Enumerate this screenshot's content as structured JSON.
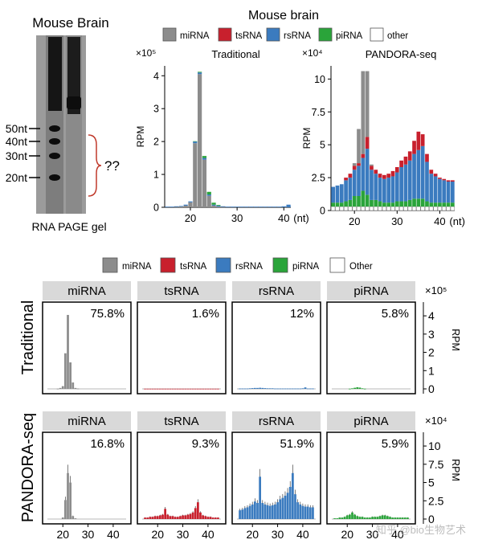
{
  "gel": {
    "title": "Mouse Brain",
    "markers": [
      "50nt",
      "40nt",
      "30nt",
      "20nt"
    ],
    "question": "??",
    "caption": "RNA PAGE gel"
  },
  "legend_top": {
    "title": "Mouse brain",
    "items": [
      "miRNA",
      "tsRNA",
      "rsRNA",
      "piRNA",
      "other"
    ]
  },
  "legend_bottom": {
    "items": [
      "miRNA",
      "tsRNA",
      "rsRNA",
      "piRNA",
      "Other"
    ]
  },
  "colors": {
    "miRNA": "#8c8c8c",
    "tsRNA": "#c8202d",
    "rsRNA": "#3b7bbf",
    "piRNA": "#2aa43a",
    "other": "#ffffff"
  },
  "watermark": "知乎 @bio生物艺术",
  "chart_data": [
    {
      "type": "bar",
      "title": "Traditional",
      "ylabel": "RPM",
      "xlabel": "(nt)",
      "y_exponent": "×10⁵",
      "xticks": [
        20,
        30,
        40
      ],
      "yticks": [
        0,
        1,
        2,
        3,
        4
      ],
      "x": [
        15,
        16,
        17,
        18,
        19,
        20,
        21,
        22,
        23,
        24,
        25,
        26,
        27,
        28,
        29,
        30,
        31,
        32,
        33,
        34,
        35,
        36,
        37,
        38,
        39,
        40,
        41
      ],
      "series": [
        {
          "name": "miRNA",
          "values": [
            0,
            0,
            0.01,
            0.02,
            0.05,
            0.15,
            1.95,
            4.05,
            1.45,
            0.35,
            0.05,
            0.02,
            0.01,
            0,
            0,
            0,
            0,
            0,
            0,
            0,
            0,
            0,
            0,
            0,
            0,
            0,
            0
          ]
        },
        {
          "name": "rsRNA",
          "values": [
            0.02,
            0.02,
            0.02,
            0.02,
            0.03,
            0.03,
            0.05,
            0.05,
            0.05,
            0.04,
            0.03,
            0.03,
            0.02,
            0.02,
            0.02,
            0.02,
            0.02,
            0.02,
            0.02,
            0.02,
            0.02,
            0.02,
            0.02,
            0.02,
            0.02,
            0.03,
            0.08
          ]
        },
        {
          "name": "piRNA",
          "values": [
            0,
            0,
            0,
            0,
            0,
            0,
            0.01,
            0.02,
            0.06,
            0.08,
            0.06,
            0.02,
            0,
            0,
            0,
            0,
            0,
            0,
            0,
            0,
            0,
            0,
            0,
            0,
            0,
            0,
            0
          ]
        }
      ]
    },
    {
      "type": "bar",
      "title": "PANDORA-seq",
      "ylabel": "RPM",
      "xlabel": "(nt)",
      "y_exponent": "×10⁴",
      "xticks": [
        20,
        30,
        40
      ],
      "yticks": [
        0,
        2.5,
        5,
        7.5,
        10
      ],
      "x": [
        15,
        16,
        17,
        18,
        19,
        20,
        21,
        22,
        23,
        24,
        25,
        26,
        27,
        28,
        29,
        30,
        31,
        32,
        33,
        34,
        35,
        36,
        37,
        38,
        39,
        40,
        41,
        42,
        43
      ],
      "series": [
        {
          "name": "other",
          "values": [
            0.3,
            0.3,
            0.3,
            0.3,
            0.3,
            0.3,
            0.3,
            0.3,
            0.3,
            0.3,
            0.3,
            0.3,
            0.3,
            0.3,
            0.3,
            0.3,
            0.3,
            0.3,
            0.3,
            0.3,
            0.3,
            0.3,
            0.3,
            0.3,
            0.3,
            0.3,
            0.3,
            0.3,
            0.3
          ]
        },
        {
          "name": "piRNA",
          "values": [
            0.3,
            0.3,
            0.3,
            0.4,
            0.5,
            0.8,
            0.8,
            1.2,
            0.9,
            0.5,
            0.5,
            0.4,
            0.3,
            0.3,
            0.3,
            0.4,
            0.4,
            0.4,
            0.5,
            0.6,
            0.6,
            0.6,
            0.4,
            0.3,
            0.3,
            0.3,
            0.3,
            0.3,
            0.3
          ]
        },
        {
          "name": "rsRNA",
          "values": [
            1.2,
            1.3,
            1.4,
            1.6,
            1.7,
            2.0,
            2.3,
            2.5,
            3.5,
            2.3,
            2.0,
            1.8,
            1.8,
            1.9,
            2.0,
            2.2,
            2.6,
            2.8,
            3.0,
            3.4,
            3.7,
            4.0,
            3.0,
            2.2,
            2.0,
            1.8,
            1.7,
            1.6,
            1.6
          ]
        },
        {
          "name": "tsRNA",
          "values": [
            0,
            0,
            0,
            0.2,
            0.3,
            0.3,
            0.2,
            0.3,
            0.9,
            0.3,
            0.3,
            0.3,
            0.3,
            0.3,
            0.4,
            0.4,
            0.5,
            0.6,
            0.7,
            1.0,
            1.4,
            0.9,
            0.6,
            0.3,
            0.2,
            0.1,
            0.1,
            0.1,
            0.1
          ]
        },
        {
          "name": "miRNA",
          "values": [
            0,
            0,
            0,
            0,
            0,
            0.2,
            2.6,
            6.3,
            5.0,
            0.1,
            0,
            0,
            0,
            0,
            0,
            0,
            0,
            0,
            0,
            0,
            0,
            0,
            0,
            0,
            0,
            0,
            0,
            0,
            0
          ]
        }
      ]
    },
    {
      "type": "bar",
      "row_labels": [
        "Traditional",
        "PANDORA-seq"
      ],
      "facets": [
        "miRNA",
        "tsRNA",
        "rsRNA",
        "piRNA"
      ],
      "ylabel": "RPM",
      "xticks": [
        20,
        30,
        40
      ],
      "x": [
        15,
        16,
        17,
        18,
        19,
        20,
        21,
        22,
        23,
        24,
        25,
        26,
        27,
        28,
        29,
        30,
        31,
        32,
        33,
        34,
        35,
        36,
        37,
        38,
        39,
        40,
        41,
        42,
        43,
        44
      ],
      "rows": [
        {
          "label": "Traditional",
          "y_exponent": "×10⁵",
          "yticks": [
            0,
            1,
            2,
            3,
            4
          ],
          "panels": [
            {
              "facet": "miRNA",
              "percent": "75.8%",
              "values": [
                0,
                0,
                0,
                0.01,
                0.05,
                0.15,
                1.95,
                4.05,
                1.45,
                0.35,
                0.05,
                0.02,
                0,
                0,
                0,
                0,
                0,
                0,
                0,
                0,
                0,
                0,
                0,
                0,
                0,
                0,
                0,
                0,
                0,
                0
              ]
            },
            {
              "facet": "tsRNA",
              "percent": "1.6%",
              "values": [
                0.01,
                0.01,
                0.01,
                0.01,
                0.01,
                0.01,
                0.01,
                0.01,
                0.01,
                0.01,
                0.01,
                0.01,
                0.01,
                0.01,
                0.01,
                0.01,
                0.01,
                0.01,
                0.01,
                0.01,
                0.01,
                0.01,
                0.01,
                0.01,
                0.01,
                0.01,
                0.01,
                0.01,
                0.01,
                0.01
              ]
            },
            {
              "facet": "rsRNA",
              "percent": "12%",
              "values": [
                0.02,
                0.02,
                0.02,
                0.02,
                0.03,
                0.04,
                0.05,
                0.05,
                0.06,
                0.05,
                0.04,
                0.03,
                0.03,
                0.03,
                0.02,
                0.02,
                0.02,
                0.02,
                0.02,
                0.02,
                0.02,
                0.02,
                0.02,
                0.02,
                0.02,
                0.03,
                0.08,
                0.02,
                0.02,
                0.02
              ]
            },
            {
              "facet": "piRNA",
              "percent": "5.8%",
              "values": [
                0,
                0,
                0,
                0,
                0,
                0,
                0.01,
                0.03,
                0.06,
                0.09,
                0.07,
                0.03,
                0.01,
                0,
                0,
                0,
                0,
                0,
                0,
                0,
                0,
                0,
                0,
                0,
                0,
                0,
                0,
                0,
                0,
                0
              ]
            }
          ]
        },
        {
          "label": "PANDORA-seq",
          "y_exponent": "×10⁴",
          "yticks": [
            0,
            2.5,
            5,
            7.5,
            10
          ],
          "panels": [
            {
              "facet": "miRNA",
              "percent": "16.8%",
              "values": [
                0,
                0,
                0,
                0,
                0,
                0.2,
                2.6,
                6.3,
                5.0,
                0.4,
                0.1,
                0,
                0,
                0,
                0,
                0,
                0,
                0,
                0,
                0,
                0,
                0,
                0,
                0,
                0,
                0,
                0,
                0,
                0,
                0
              ]
            },
            {
              "facet": "tsRNA",
              "percent": "9.3%",
              "values": [
                0.2,
                0.2,
                0.3,
                0.3,
                0.4,
                0.4,
                0.5,
                0.6,
                1.4,
                0.6,
                0.4,
                0.4,
                0.3,
                0.3,
                0.4,
                0.5,
                0.5,
                0.6,
                0.7,
                0.9,
                1.5,
                2.3,
                0.9,
                0.5,
                0.4,
                0.3,
                0.3,
                0.2,
                0.2,
                0.2
              ]
            },
            {
              "facet": "rsRNA",
              "percent": "51.9%",
              "values": [
                1.2,
                1.3,
                1.5,
                1.6,
                1.8,
                2.0,
                2.4,
                2.2,
                5.8,
                2.2,
                2.0,
                1.9,
                1.8,
                1.9,
                2.0,
                2.3,
                2.7,
                2.9,
                3.2,
                3.6,
                4.4,
                6.3,
                3.4,
                2.3,
                2.0,
                1.8,
                1.7,
                1.7,
                1.6,
                1.6
              ]
            },
            {
              "facet": "piRNA",
              "percent": "5.9%",
              "values": [
                0.1,
                0.1,
                0.2,
                0.2,
                0.3,
                0.5,
                0.6,
                0.9,
                0.6,
                0.4,
                0.3,
                0.3,
                0.2,
                0.2,
                0.2,
                0.3,
                0.3,
                0.3,
                0.4,
                0.5,
                0.5,
                0.4,
                0.3,
                0.2,
                0.2,
                0.2,
                0.2,
                0.2,
                0.2,
                0.2
              ]
            }
          ]
        }
      ]
    }
  ]
}
